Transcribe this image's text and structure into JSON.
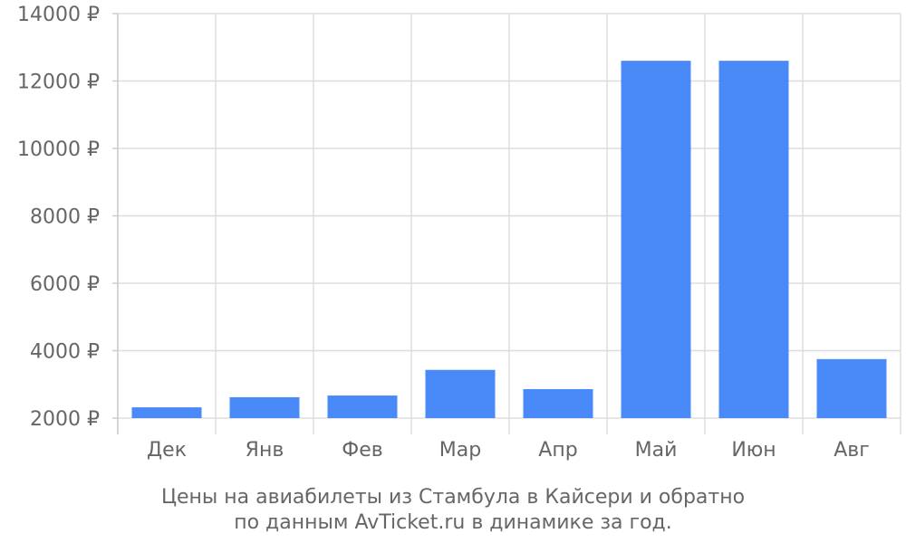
{
  "chart_data": {
    "type": "bar",
    "title": "",
    "xlabel": "",
    "ylabel": "",
    "categories": [
      "Дек",
      "Янв",
      "Фев",
      "Мар",
      "Апр",
      "Май",
      "Июн",
      "Авг"
    ],
    "values": [
      2320,
      2620,
      2670,
      3430,
      2860,
      12600,
      12600,
      3750
    ],
    "ylim": [
      2000,
      14000
    ],
    "ytick_values": [
      2000,
      4000,
      6000,
      8000,
      10000,
      12000,
      14000
    ],
    "ytick_labels": [
      "2000 ₽",
      "4000 ₽",
      "6000 ₽",
      "8000 ₽",
      "10000 ₽",
      "12000 ₽",
      "14000 ₽"
    ],
    "bar_color": "#4a89f8",
    "grid": true,
    "grid_color": "#dddddd",
    "caption_lines": [
      "Цены на авиабилеты из Стамбула в Кайсери и обратно",
      "по данным AvTicket.ru в динамике за год."
    ]
  }
}
